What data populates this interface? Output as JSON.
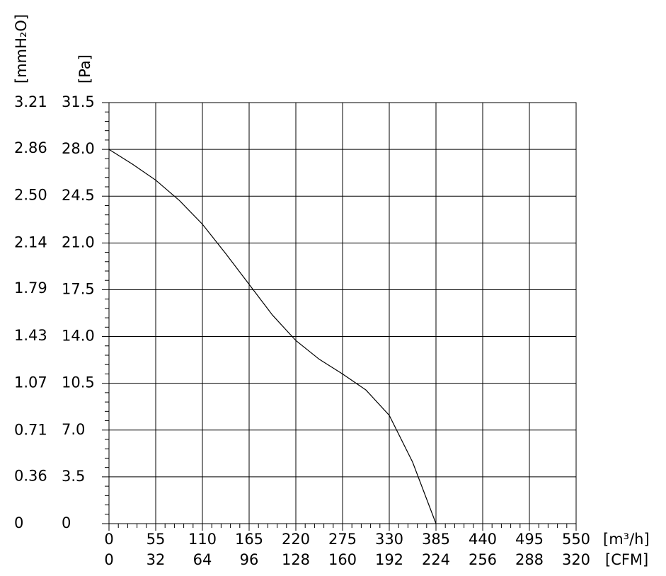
{
  "chart_data": {
    "type": "line",
    "x_label": "[m³/h]",
    "x2_label": "[CFM]",
    "y_label": "[Pa]",
    "y2_label": "[mmH₂O]",
    "x": [
      0,
      27.5,
      55,
      82.5,
      110,
      137.5,
      165,
      192.5,
      220,
      247.5,
      275,
      302.5,
      330,
      357.5,
      385
    ],
    "series": [
      {
        "color": "#000000",
        "values": [
          28,
          26.9,
          25.7,
          24.2,
          22.4,
          20.2,
          17.9,
          15.6,
          13.7,
          12.3,
          11.2,
          10,
          8.1,
          4.6,
          0
        ]
      }
    ],
    "xlim": [
      0,
      550
    ],
    "xticks": [
      0,
      55,
      110,
      165,
      220,
      275,
      330,
      385,
      440,
      495,
      550
    ],
    "x2lim": [
      0,
      320
    ],
    "x2ticks": [
      0,
      32,
      64,
      96,
      128,
      160,
      192,
      224,
      256,
      288,
      320
    ],
    "ylim": [
      0,
      31.5
    ],
    "yticks": [
      0,
      3.5,
      {
        "value": 7,
        "label": "7.0"
      },
      10.5,
      {
        "value": 14,
        "label": "14.0"
      },
      17.5,
      {
        "value": 21,
        "label": "21.0"
      },
      24.5,
      {
        "value": 28,
        "label": "28.0"
      },
      31.5
    ],
    "y2lim": [
      0,
      3.21
    ],
    "y2ticks": [
      0,
      0.36,
      0.71,
      1.07,
      1.43,
      1.79,
      2.14,
      {
        "value": 2.5,
        "label": "2.50"
      },
      2.86,
      3.21
    ],
    "grid": true
  }
}
